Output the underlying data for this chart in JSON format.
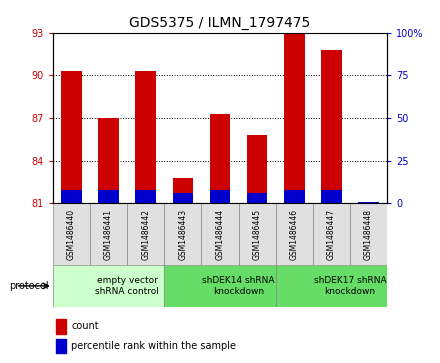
{
  "title": "GDS5375 / ILMN_1797475",
  "samples": [
    "GSM1486440",
    "GSM1486441",
    "GSM1486442",
    "GSM1486443",
    "GSM1486444",
    "GSM1486445",
    "GSM1486446",
    "GSM1486447",
    "GSM1486448"
  ],
  "count_values": [
    90.3,
    87.0,
    90.3,
    82.8,
    87.3,
    85.8,
    93.0,
    91.8,
    81.0
  ],
  "percentile_values": [
    8,
    8,
    8,
    6,
    8,
    6,
    8,
    8,
    1
  ],
  "base_value": 81.0,
  "ylim_left": [
    81,
    93
  ],
  "ylim_right": [
    0,
    100
  ],
  "yticks_left": [
    81,
    84,
    87,
    90,
    93
  ],
  "yticks_right": [
    0,
    25,
    50,
    75,
    100
  ],
  "ytick_labels_right": [
    "0",
    "25",
    "50",
    "75",
    "100%"
  ],
  "bar_width": 0.55,
  "count_color": "#cc0000",
  "percentile_color": "#0000cc",
  "background_color": "#ffffff",
  "tick_color_left": "#cc0000",
  "tick_color_right": "#0000cc",
  "groups": [
    {
      "label": "empty vector\nshRNA control",
      "start": 0,
      "end": 3,
      "color": "#ccffcc"
    },
    {
      "label": "shDEK14 shRNA\nknockdown",
      "start": 3,
      "end": 6,
      "color": "#66dd66"
    },
    {
      "label": "shDEK17 shRNA\nknockdown",
      "start": 6,
      "end": 9,
      "color": "#66dd66"
    }
  ],
  "protocol_label": "protocol",
  "legend_count_label": "count",
  "legend_percentile_label": "percentile rank within the sample",
  "title_fontsize": 10,
  "tick_fontsize": 7,
  "sample_fontsize": 5.5,
  "group_fontsize": 6.5,
  "legend_fontsize": 7
}
